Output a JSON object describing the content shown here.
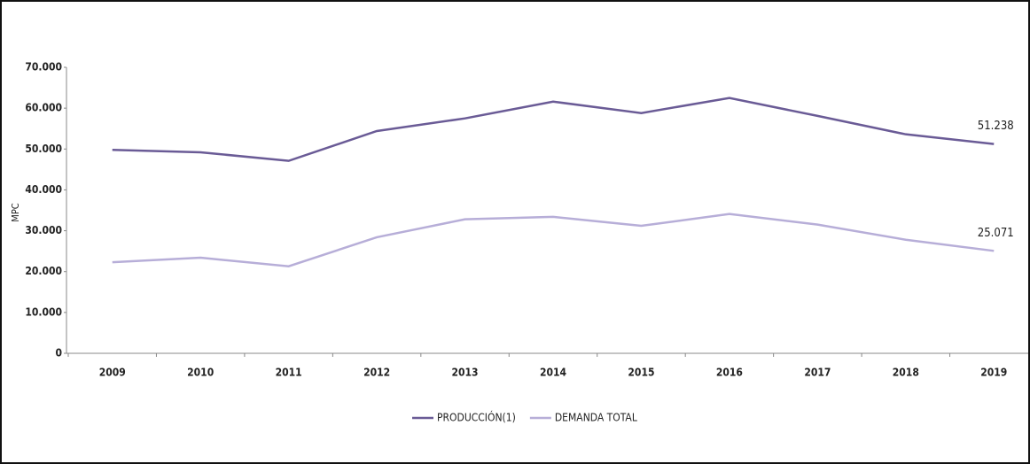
{
  "chart_data": {
    "type": "line",
    "ylabel": "MPC",
    "categories": [
      "2009",
      "2010",
      "2011",
      "2012",
      "2013",
      "2014",
      "2015",
      "2016",
      "2017",
      "2018",
      "2019"
    ],
    "series": [
      {
        "name": "PRODUCCIÓN(1)",
        "color": "#6a5b96",
        "values": [
          49800,
          49200,
          47100,
          54400,
          57500,
          61600,
          58800,
          62500,
          58100,
          53600,
          51238
        ],
        "value_labels": [
          null,
          null,
          null,
          null,
          null,
          null,
          null,
          null,
          null,
          null,
          "51.238"
        ]
      },
      {
        "name": "DEMANDA TOTAL",
        "color": "#b7aed8",
        "values": [
          22300,
          23400,
          21300,
          28400,
          32800,
          33400,
          31200,
          34100,
          31500,
          27800,
          25071
        ],
        "value_labels": [
          null,
          null,
          null,
          null,
          null,
          null,
          null,
          null,
          null,
          null,
          "25.071"
        ]
      }
    ],
    "ylim": [
      0,
      70000
    ],
    "yticks": [
      {
        "value": 0,
        "label": "0"
      },
      {
        "value": 10000,
        "label": "10.000"
      },
      {
        "value": 20000,
        "label": "20.000"
      },
      {
        "value": 30000,
        "label": "30.000"
      },
      {
        "value": 40000,
        "label": "40.000"
      },
      {
        "value": 50000,
        "label": "50.000"
      },
      {
        "value": 60000,
        "label": "60.000"
      },
      {
        "value": 70000,
        "label": "70.000"
      }
    ],
    "grid": false,
    "legend": "bottom"
  }
}
